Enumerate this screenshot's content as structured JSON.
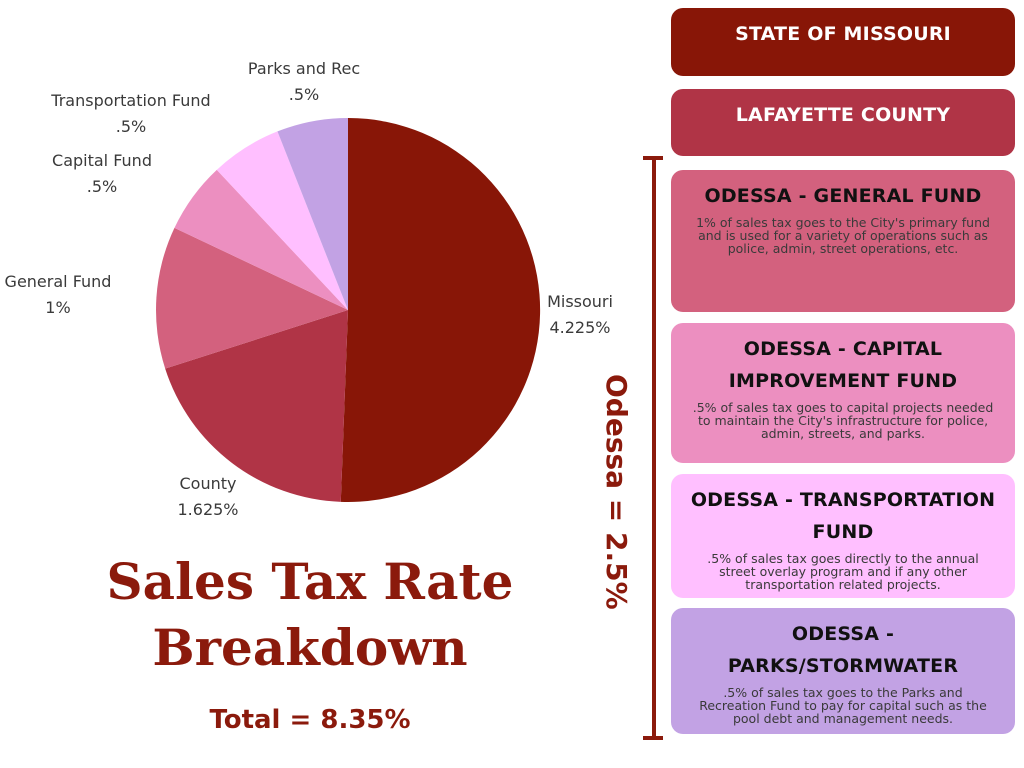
{
  "chart_data": {
    "type": "pie",
    "title": "Sales Tax Rate Breakdown",
    "slices": [
      {
        "label": "Missouri",
        "value_label": "4.225%",
        "value": 4.225,
        "color": "#881607"
      },
      {
        "label": "County",
        "value_label": "1.625%",
        "value": 1.625,
        "color": "#b03446"
      },
      {
        "label": "General Fund",
        "value_label": "1%",
        "value": 1.0,
        "color": "#d3617e"
      },
      {
        "label": "Capital Fund",
        "value_label": ".5%",
        "value": 0.5,
        "color": "#ec8fc0"
      },
      {
        "label": "Transportation Fund",
        "value_label": ".5%",
        "value": 0.5,
        "color": "#ffbfff"
      },
      {
        "label": "Parks and Rec",
        "value_label": ".5%",
        "value": 0.5,
        "color": "#c2a2e4"
      }
    ]
  },
  "title": {
    "line1": "Sales Tax Rate",
    "line2": "Breakdown"
  },
  "total": "Total = 8.35%",
  "odessa_total": "Odessa = 2.5%",
  "boxes": [
    {
      "id": "missouri",
      "title": "STATE OF MISSOURI",
      "desc": "",
      "color": "#881607"
    },
    {
      "id": "county",
      "title": "LAFAYETTE COUNTY",
      "desc": "",
      "color": "#b03446"
    },
    {
      "id": "general",
      "title": "ODESSA - GENERAL FUND",
      "desc": "1% of sales tax goes to the City's primary fund and is used for a variety of operations such as police, admin, street operations, etc.",
      "color": "#d3617e"
    },
    {
      "id": "capital",
      "title": "ODESSA - CAPITAL IMPROVEMENT FUND",
      "desc": ".5% of sales tax goes to capital projects needed to maintain the City's infrastructure for police, admin, streets, and parks.",
      "color": "#ec8fc0"
    },
    {
      "id": "transportation",
      "title": "ODESSA - TRANSPORTATION FUND",
      "desc": ".5% of sales tax goes directly to the annual street overlay program and if any other transportation related projects.",
      "color": "#ffbfff"
    },
    {
      "id": "parks",
      "title": "ODESSA - PARKS/STORMWATER",
      "desc": ".5% of sales tax goes to the Parks and Recreation Fund to pay for capital such as the pool debt and management needs.",
      "color": "#c2a2e4"
    }
  ],
  "accent_color": "#8b1a0c"
}
